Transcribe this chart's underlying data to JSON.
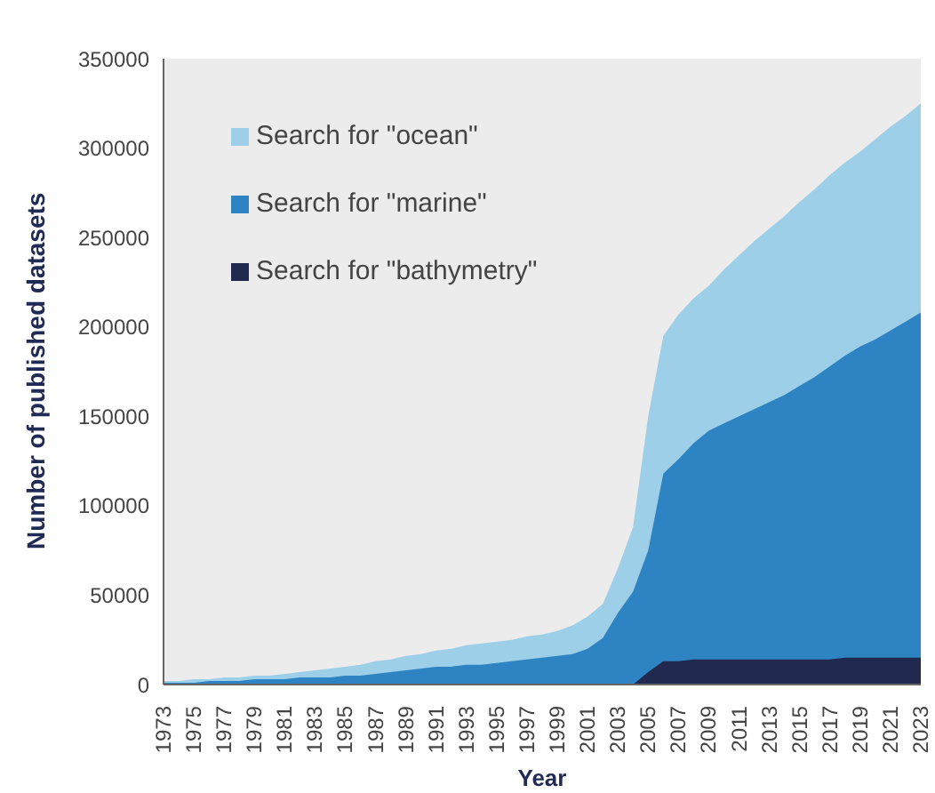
{
  "chart_data": {
    "type": "area",
    "xlabel": "Year",
    "ylabel": "Number of published datasets",
    "x": [
      1973,
      1974,
      1975,
      1976,
      1977,
      1978,
      1979,
      1980,
      1981,
      1982,
      1983,
      1984,
      1985,
      1986,
      1987,
      1988,
      1989,
      1990,
      1991,
      1992,
      1993,
      1994,
      1995,
      1996,
      1997,
      1998,
      1999,
      2000,
      2001,
      2002,
      2003,
      2004,
      2005,
      2006,
      2007,
      2008,
      2009,
      2010,
      2011,
      2012,
      2013,
      2014,
      2015,
      2016,
      2017,
      2018,
      2019,
      2020,
      2021,
      2022,
      2023
    ],
    "series": [
      {
        "name": "Search for \"ocean\"",
        "color": "#9dd0e8",
        "values": [
          2000,
          2000,
          3000,
          3000,
          4000,
          4000,
          5000,
          5000,
          6000,
          7000,
          8000,
          9000,
          10000,
          11000,
          13000,
          14000,
          16000,
          17000,
          19000,
          20000,
          22000,
          23000,
          24000,
          25000,
          27000,
          28000,
          30000,
          33000,
          38000,
          45000,
          65000,
          88000,
          150000,
          195000,
          207000,
          216000,
          223000,
          232000,
          240000,
          248000,
          255000,
          262000,
          270000,
          277000,
          285000,
          292000,
          298000,
          305000,
          312000,
          318000,
          325000
        ]
      },
      {
        "name": "Search for \"marine\"",
        "color": "#2e83c2",
        "values": [
          1000,
          1000,
          1000,
          2000,
          2000,
          2000,
          3000,
          3000,
          3000,
          4000,
          4000,
          4000,
          5000,
          5000,
          6000,
          7000,
          8000,
          9000,
          10000,
          10000,
          11000,
          11000,
          12000,
          13000,
          14000,
          15000,
          16000,
          17000,
          20000,
          26000,
          40000,
          52000,
          75000,
          118000,
          126000,
          135000,
          142000,
          146000,
          150000,
          154000,
          158000,
          162000,
          167000,
          172000,
          178000,
          184000,
          189000,
          193000,
          198000,
          203000,
          208000
        ]
      },
      {
        "name": "Search for \"bathymetry\"",
        "color": "#212a4e",
        "values": [
          0,
          0,
          0,
          0,
          0,
          0,
          0,
          0,
          0,
          0,
          0,
          0,
          0,
          0,
          0,
          0,
          0,
          0,
          0,
          0,
          0,
          0,
          0,
          0,
          0,
          0,
          0,
          0,
          0,
          0,
          0,
          0,
          7000,
          13000,
          13000,
          14000,
          14000,
          14000,
          14000,
          14000,
          14000,
          14000,
          14000,
          14000,
          14000,
          15000,
          15000,
          15000,
          15000,
          15000,
          15000
        ]
      }
    ],
    "xlim": [
      1973,
      2023
    ],
    "xticks": [
      1973,
      1975,
      1977,
      1979,
      1981,
      1983,
      1985,
      1987,
      1989,
      1991,
      1993,
      1995,
      1997,
      1999,
      2001,
      2003,
      2005,
      2007,
      2009,
      2011,
      2013,
      2015,
      2017,
      2019,
      2021,
      2023
    ],
    "ylim": [
      0,
      350000
    ],
    "yticks": [
      0,
      50000,
      100000,
      150000,
      200000,
      250000,
      300000,
      350000
    ],
    "grid": false,
    "legend": "top left"
  }
}
